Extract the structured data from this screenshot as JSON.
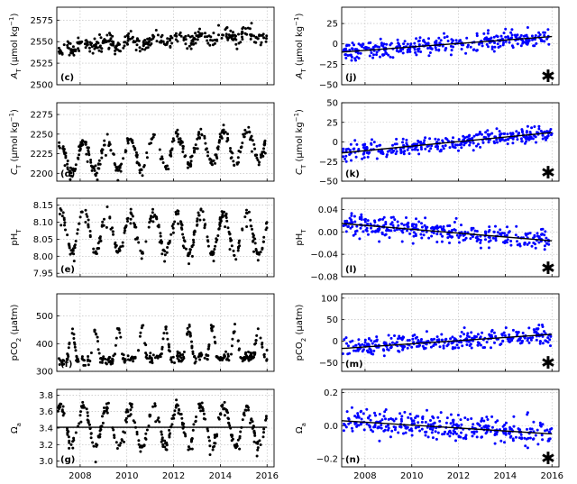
{
  "figure": {
    "x_ticks": [
      "2008",
      "2010",
      "2012",
      "2014",
      "2016"
    ],
    "trend_symbol": "✱"
  },
  "chart_data": [
    {
      "type": "scatter",
      "id": "c",
      "panel_label": "(c)",
      "color": "#000000",
      "ylabel": "A_T (μmol kg⁻¹)",
      "ylabel_main": "A",
      "ylabel_sub": "T",
      "ylabel_unit": " (μmol kg",
      "ylabel_sup": "−1",
      "ylabel_end": ")",
      "xlim": [
        2007.0,
        2016.3
      ],
      "ylim": [
        2500,
        2590
      ],
      "yticks": [
        2500,
        2525,
        2550,
        2575
      ],
      "ytick_labels": [
        "2500",
        "2525",
        "2550",
        "2575"
      ],
      "pattern": {
        "kind": "atotal",
        "base": 2551,
        "slope": 1.7,
        "amp": 4,
        "noise": 9
      },
      "trend": null,
      "significant": false
    },
    {
      "type": "scatter",
      "id": "j",
      "panel_label": "(j)",
      "color": "#0000ff",
      "ylabel": "A_T (μmol kg⁻¹)",
      "ylabel_main": "A",
      "ylabel_sub": "T",
      "ylabel_unit": " (μmol kg",
      "ylabel_sup": "−1",
      "ylabel_end": ")",
      "xlim": [
        2007.0,
        2016.3
      ],
      "ylim": [
        -50,
        45
      ],
      "yticks": [
        -50,
        -25,
        0,
        25
      ],
      "ytick_labels": [
        "−50",
        "−25",
        "0",
        "25"
      ],
      "pattern": {
        "kind": "anomaly",
        "noise": 11
      },
      "trend": [
        [
          2007.0,
          -10
        ],
        [
          2016.0,
          9
        ]
      ],
      "significant": true
    },
    {
      "type": "scatter",
      "id": "d",
      "panel_label": "(d)",
      "color": "#000000",
      "ylabel": "C_T (μmol kg⁻¹)",
      "ylabel_main": "C",
      "ylabel_sub": "T",
      "ylabel_unit": " (μmol kg",
      "ylabel_sup": "−1",
      "ylabel_end": ")",
      "xlim": [
        2007.0,
        2016.3
      ],
      "ylim": [
        2190,
        2290
      ],
      "yticks": [
        2200,
        2225,
        2250,
        2275
      ],
      "ytick_labels": [
        "2200",
        "2225",
        "2250",
        "2275"
      ],
      "pattern": {
        "kind": "seasonal",
        "base": 2228,
        "slope": 2.2,
        "amp": 20,
        "noise": 7
      },
      "trend": null,
      "significant": false
    },
    {
      "type": "scatter",
      "id": "k",
      "panel_label": "(k)",
      "color": "#0000ff",
      "ylabel": "C_T (μmol kg⁻¹)",
      "ylabel_main": "C",
      "ylabel_sub": "T",
      "ylabel_unit": " (μmol kg",
      "ylabel_sup": "−1",
      "ylabel_end": ")",
      "xlim": [
        2007.0,
        2016.3
      ],
      "ylim": [
        -50,
        50
      ],
      "yticks": [
        -50,
        -25,
        0,
        25,
        50
      ],
      "ytick_labels": [
        "−50",
        "−25",
        "0",
        "25",
        "50"
      ],
      "pattern": {
        "kind": "anomaly",
        "noise": 11
      },
      "trend": [
        [
          2007.0,
          -14
        ],
        [
          2016.0,
          12
        ]
      ],
      "significant": true
    },
    {
      "type": "scatter",
      "id": "e",
      "panel_label": "(e)",
      "color": "#000000",
      "ylabel": "pH_T",
      "ylabel_main": "pH",
      "ylabel_sub": "T",
      "ylabel_unit": "",
      "ylabel_sup": "",
      "ylabel_end": "",
      "xlim": [
        2007.0,
        2016.3
      ],
      "ylim": [
        7.94,
        8.17
      ],
      "yticks": [
        7.95,
        8.0,
        8.05,
        8.1,
        8.15
      ],
      "ytick_labels": [
        "7.95",
        "8.00",
        "8.05",
        "8.10",
        "8.15"
      ],
      "pattern": {
        "kind": "seasonal",
        "base": 8.07,
        "slope": -0.001,
        "amp": 0.06,
        "noise": 0.012
      },
      "trend": null,
      "significant": false
    },
    {
      "type": "scatter",
      "id": "l",
      "panel_label": "(l)",
      "color": "#0000ff",
      "ylabel": "pH_T",
      "ylabel_main": "pH",
      "ylabel_sub": "T",
      "ylabel_unit": "",
      "ylabel_sup": "",
      "ylabel_end": "",
      "xlim": [
        2007.0,
        2016.3
      ],
      "ylim": [
        -0.08,
        0.06
      ],
      "yticks": [
        -0.08,
        -0.04,
        0.0,
        0.04
      ],
      "ytick_labels": [
        "−0.08",
        "−0.04",
        "0.00",
        "0.04"
      ],
      "pattern": {
        "kind": "anomaly",
        "noise": 0.018
      },
      "trend": [
        [
          2007.0,
          0.015
        ],
        [
          2016.0,
          -0.016
        ]
      ],
      "significant": true
    },
    {
      "type": "scatter",
      "id": "f",
      "panel_label": "(f)",
      "color": "#000000",
      "ylabel": "pCO2 (μatm)",
      "ylabel_main": "pCO",
      "ylabel_sub": "2",
      "ylabel_unit": " (μatm)",
      "ylabel_sup": "",
      "ylabel_end": "",
      "xlim": [
        2007.0,
        2016.3
      ],
      "ylim": [
        300,
        580
      ],
      "yticks": [
        300,
        400,
        500
      ],
      "ytick_labels": [
        "300",
        "400",
        "500"
      ],
      "pattern": {
        "kind": "seasonal_inv",
        "base": 405,
        "slope": 2,
        "amp": 70,
        "noise": 18
      },
      "trend": null,
      "significant": false
    },
    {
      "type": "scatter",
      "id": "m",
      "panel_label": "(m)",
      "color": "#0000ff",
      "ylabel": "pCO2 (μatm)",
      "ylabel_main": "pCO",
      "ylabel_sub": "2",
      "ylabel_unit": " (μatm)",
      "ylabel_sup": "",
      "ylabel_end": "",
      "xlim": [
        2007.0,
        2016.3
      ],
      "ylim": [
        -70,
        110
      ],
      "yticks": [
        -50,
        0,
        50,
        100
      ],
      "ytick_labels": [
        "−50",
        "0",
        "50",
        "100"
      ],
      "pattern": {
        "kind": "anomaly",
        "noise": 20
      },
      "trend": [
        [
          2007.0,
          -17
        ],
        [
          2016.0,
          16
        ]
      ],
      "significant": true
    },
    {
      "type": "scatter",
      "id": "g",
      "panel_label": "(g)",
      "color": "#000000",
      "ylabel": "Ω_a",
      "ylabel_main": "Ω",
      "ylabel_sub": "a",
      "ylabel_unit": "",
      "ylabel_sup": "",
      "ylabel_end": "",
      "xlim": [
        2007.0,
        2016.3
      ],
      "ylim": [
        2.93,
        3.87
      ],
      "yticks": [
        3.0,
        3.2,
        3.4,
        3.6,
        3.8
      ],
      "ytick_labels": [
        "3.0",
        "3.2",
        "3.4",
        "3.6",
        "3.8"
      ],
      "pattern": {
        "kind": "seasonal",
        "base": 3.43,
        "slope": 0,
        "amp": 0.24,
        "noise": 0.06
      },
      "trend": [
        [
          2007.0,
          3.41
        ],
        [
          2016.0,
          3.41
        ]
      ],
      "significant": false
    },
    {
      "type": "scatter",
      "id": "n",
      "panel_label": "(n)",
      "color": "#0000ff",
      "ylabel": "Ω_a",
      "ylabel_main": "Ω",
      "ylabel_sub": "a",
      "ylabel_unit": "",
      "ylabel_sup": "",
      "ylabel_end": "",
      "xlim": [
        2007.0,
        2016.3
      ],
      "ylim": [
        -0.25,
        0.22
      ],
      "yticks": [
        -0.2,
        0.0,
        0.2
      ],
      "ytick_labels": [
        "−0.2",
        "0.0",
        "0.2"
      ],
      "pattern": {
        "kind": "anomaly",
        "noise": 0.08
      },
      "trend": [
        [
          2007.0,
          0.03
        ],
        [
          2016.0,
          -0.05
        ]
      ],
      "significant": true
    }
  ]
}
